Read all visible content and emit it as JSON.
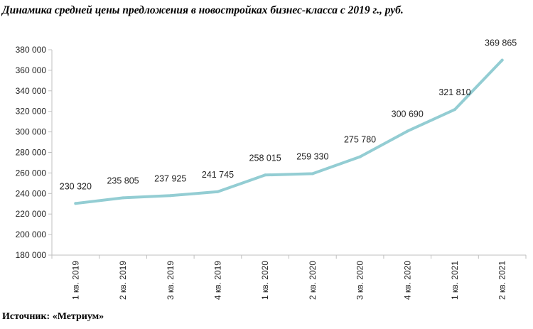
{
  "title": "Динамика средней цены предложения в новостройках бизнес-класса с 2019 г., руб.",
  "source": "Источник: «Метриум»",
  "colors": {
    "line": "#93cdd3",
    "axis": "#bfbfbf",
    "text": "#222222"
  },
  "chart_data": {
    "type": "line",
    "categories": [
      "1 кв. 2019",
      "2 кв. 2019",
      "3 кв. 2019",
      "4 кв. 2019",
      "1 кв. 2020",
      "2 кв. 2020",
      "3 кв. 2020",
      "4 кв. 2020",
      "1 кв. 2021",
      "2 кв. 2021"
    ],
    "values": [
      230320,
      235805,
      237925,
      241745,
      258015,
      259330,
      275780,
      300690,
      321810,
      369865
    ],
    "data_labels": [
      "230 320",
      "235 805",
      "237 925",
      "241 745",
      "258 015",
      "259 330",
      "275 780",
      "300 690",
      "321 810",
      "369 865"
    ],
    "ylim": [
      180000,
      380000
    ],
    "yticks": [
      180000,
      200000,
      220000,
      240000,
      260000,
      280000,
      300000,
      320000,
      340000,
      360000,
      380000
    ],
    "ytick_labels": [
      "180 000",
      "200 000",
      "220 000",
      "240 000",
      "260 000",
      "280 000",
      "300 000",
      "320 000",
      "340 000",
      "360 000",
      "380 000"
    ],
    "grid": false,
    "legend": "none"
  }
}
